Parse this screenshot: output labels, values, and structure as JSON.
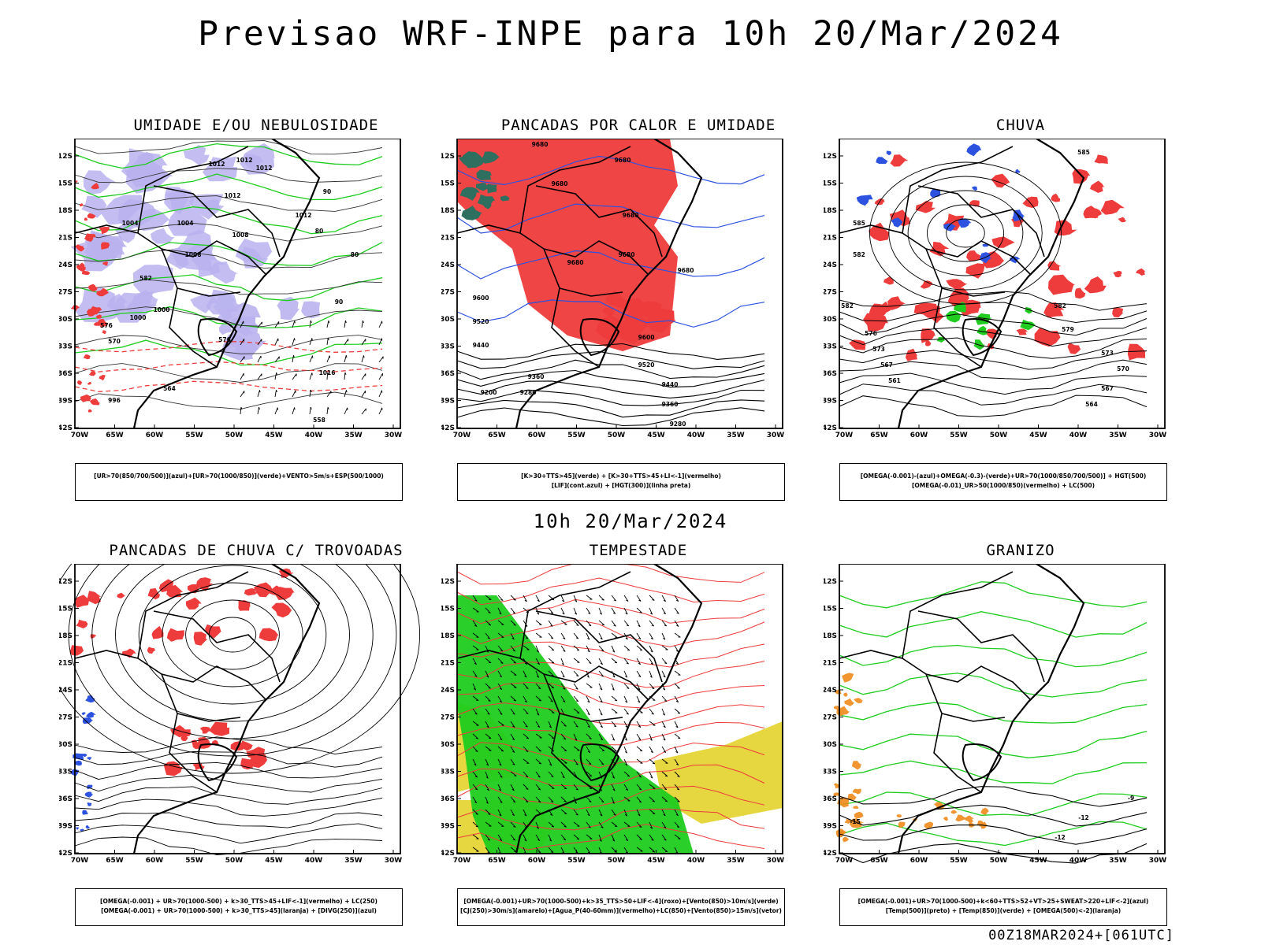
{
  "header": {
    "title": "Previsao WRF-INPE  para 10h 20/Mar/2024"
  },
  "middle_date": "10h 20/Mar/2024",
  "footer": "00Z18MAR2024+[061UTC]",
  "axes": {
    "lat_labels": [
      "12S",
      "15S",
      "18S",
      "21S",
      "24S",
      "27S",
      "30S",
      "33S",
      "36S",
      "39S",
      "42S"
    ],
    "lon_labels": [
      "70W",
      "65W",
      "60W",
      "55W",
      "50W",
      "45W",
      "40W",
      "35W",
      "30W"
    ]
  },
  "colors": {
    "blue": "#2d52e0",
    "lavender": "#b9b2ee",
    "green": "#1fcc1f",
    "red": "#ee3b3b",
    "yellow": "#e3d22a",
    "orange": "#f08a1a",
    "teal": "#2f6f5f",
    "black": "#000000"
  },
  "panels": [
    {
      "title": "UMIDADE E/OU NEBULOSIDADE",
      "legend": [
        "[UR>70(850/700/500)](azul)+[UR>70(1000/850)](verde)+VENTO>5m/s+ESP(500/1000)"
      ],
      "labels": [
        "1012",
        "1012",
        "1012",
        "1012",
        "1008",
        "1008",
        "1004",
        "1004",
        "1000",
        "1000",
        "996",
        "1016",
        "1012",
        "576",
        "570",
        "564",
        "576",
        "582",
        "558",
        "90",
        "80",
        "90",
        "80"
      ]
    },
    {
      "title": "PANCADAS POR CALOR E UMIDADE",
      "legend": [
        "[K>30+TTS>45](verde) + [K>30+TTS>45+LI<-1](vermelho)",
        "[LIF](cont.azul) + [HGT(300)](linha preta)"
      ],
      "labels": [
        "9680",
        "9680",
        "9680",
        "9680",
        "9680",
        "9680",
        "9680",
        "9600",
        "9520",
        "9440",
        "9360",
        "9280",
        "9200",
        "9600",
        "9520",
        "9440",
        "9360",
        "9280"
      ]
    },
    {
      "title": "CHUVA",
      "legend": [
        "[OMEGA(-0.001)-(azul)+OMEGA(-0.3)-(verde)+UR>70(1000/850/700/500)] + HGT(500)",
        "[OMEGA(-0.01)_UR>50(1000/850)(vermelho) + LC(500)"
      ],
      "labels": [
        "585",
        "582",
        "582",
        "576",
        "573",
        "567",
        "561",
        "585",
        "582",
        "579",
        "573",
        "570",
        "567",
        "564"
      ]
    },
    {
      "title": "PANCADAS DE CHUVA C/ TROVOADAS",
      "legend": [
        "[OMEGA(-0.001) + UR>70(1000-500) + k>30_TTS>45+LIF<-1](vermelho) + LC(250)",
        "[OMEGA(-0.001) + UR>70(1000-500) + k>30_TTS>45](laranja) + [DIVG(250)](azul)"
      ],
      "labels": []
    },
    {
      "title": "TEMPESTADE",
      "legend": [
        "[OMEGA(-0.001)+UR>70(1000-500)+k>35_TTS>50+LIF<-4](roxo)+[Vento(850)>10m/s](verde)",
        "[CJ(250)>30m/s](amarelo)+[Agua_P(40-60mm)](vermelho)+LC(850)+[Vento(850)>15m/s](vetor)"
      ],
      "labels": []
    },
    {
      "title": "GRANIZO",
      "legend": [
        "[OMEGA(-0.001)+UR>70(1000-500)+k<60+TTS>52+VT>25+SWEAT>220+LIF<-2](azul)",
        "[Temp(500)](preto) + [Temp(850)](verde) + [OMEGA(500)<-2](laranja)"
      ],
      "labels": [
        "-15",
        "-12",
        "-9",
        "-12"
      ]
    }
  ]
}
